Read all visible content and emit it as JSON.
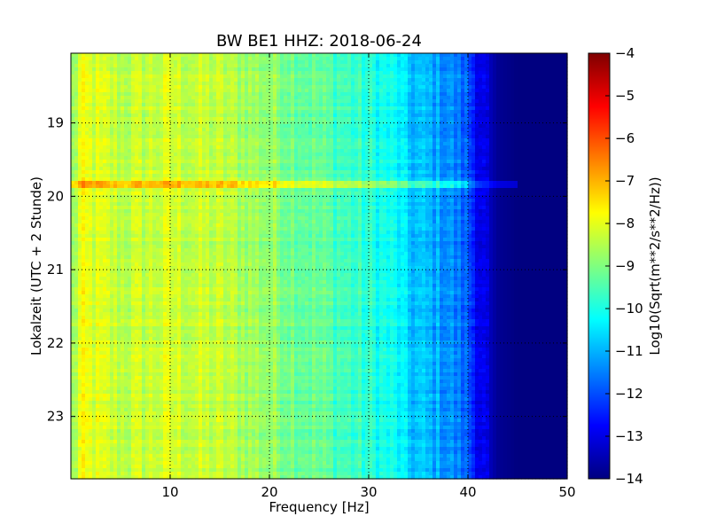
{
  "chart_data": {
    "type": "heatmap",
    "title": "BW BE1 HHZ: 2018-06-24",
    "xlabel": "Frequency [Hz]",
    "ylabel": "Lokalzeit (UTC + 2 Stunde)",
    "xlim": [
      0,
      50
    ],
    "ylim": [
      18.05,
      23.85
    ],
    "x_ticks": [
      10,
      20,
      30,
      40,
      50
    ],
    "y_ticks": [
      19,
      20,
      21,
      22,
      23
    ],
    "y_inverted": true,
    "grid": true,
    "grid_style": "dotted",
    "colormap": "jet",
    "colorbar": {
      "label": "Log10(Sqrt(m**2/s**2/Hz))",
      "range": [
        -14,
        -4
      ],
      "ticks": [
        -4,
        -5,
        -6,
        -7,
        -8,
        -9,
        -10,
        -11,
        -12,
        -13,
        -14
      ]
    },
    "spectral_profile": {
      "frequency_hz": [
        0,
        1,
        2,
        5,
        8,
        10,
        12,
        15,
        20,
        25,
        30,
        33,
        34,
        36,
        38,
        40,
        41,
        42,
        43,
        45,
        50
      ],
      "log_psd": [
        -9.0,
        -8.0,
        -8.1,
        -8.4,
        -8.3,
        -8.2,
        -8.3,
        -8.4,
        -8.8,
        -9.3,
        -9.9,
        -10.3,
        -10.8,
        -11.0,
        -11.3,
        -11.9,
        -12.7,
        -13.3,
        -13.8,
        -14.0,
        -14.0
      ]
    },
    "events": [
      {
        "time": 19.85,
        "log_psd_increase": 1.3,
        "max_frequency_hz": 45
      }
    ]
  }
}
